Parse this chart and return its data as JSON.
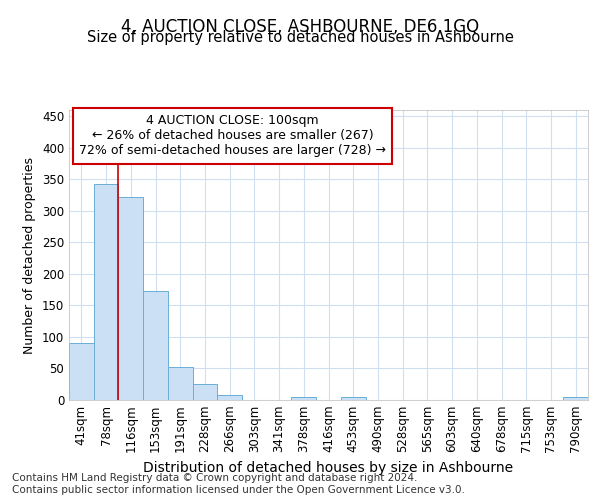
{
  "title": "4, AUCTION CLOSE, ASHBOURNE, DE6 1GQ",
  "subtitle": "Size of property relative to detached houses in Ashbourne",
  "xlabel": "Distribution of detached houses by size in Ashbourne",
  "ylabel": "Number of detached properties",
  "categories": [
    "41sqm",
    "78sqm",
    "116sqm",
    "153sqm",
    "191sqm",
    "228sqm",
    "266sqm",
    "303sqm",
    "341sqm",
    "378sqm",
    "416sqm",
    "453sqm",
    "490sqm",
    "528sqm",
    "565sqm",
    "603sqm",
    "640sqm",
    "678sqm",
    "715sqm",
    "753sqm",
    "790sqm"
  ],
  "values": [
    90,
    343,
    322,
    173,
    52,
    25,
    8,
    0,
    0,
    4,
    0,
    5,
    0,
    0,
    0,
    0,
    0,
    0,
    0,
    0,
    4
  ],
  "bar_color": "#cce0f5",
  "bar_edge_color": "#6aaed6",
  "grid_color": "#d0dff0",
  "annotation_text": "4 AUCTION CLOSE: 100sqm\n← 26% of detached houses are smaller (267)\n72% of semi-detached houses are larger (728) →",
  "annotation_box_edge_color": "#cc0000",
  "red_line_x": 1.5,
  "ylim": [
    0,
    460
  ],
  "yticks": [
    0,
    50,
    100,
    150,
    200,
    250,
    300,
    350,
    400,
    450
  ],
  "title_fontsize": 12,
  "subtitle_fontsize": 10.5,
  "xlabel_fontsize": 10,
  "ylabel_fontsize": 9,
  "tick_fontsize": 8.5,
  "annotation_fontsize": 9,
  "footer_text": "Contains HM Land Registry data © Crown copyright and database right 2024.\nContains public sector information licensed under the Open Government Licence v3.0.",
  "footer_fontsize": 7.5
}
